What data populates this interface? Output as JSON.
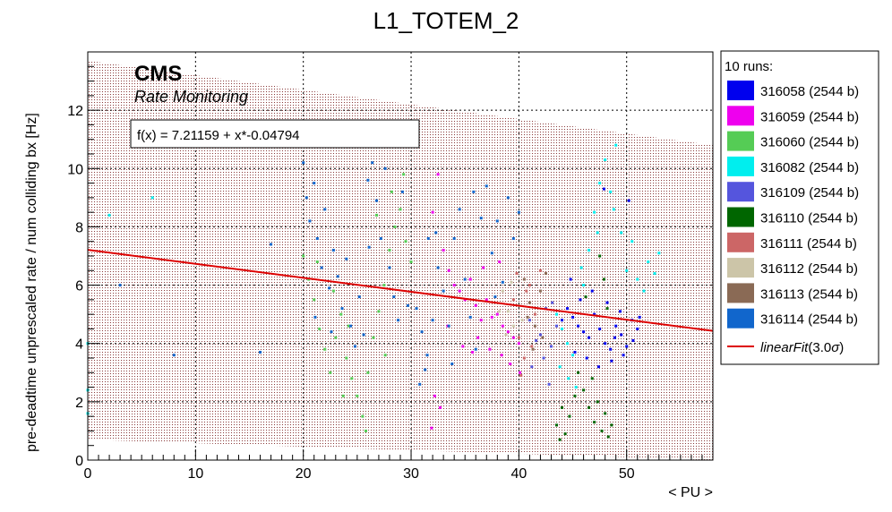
{
  "chart_data": {
    "type": "scatter",
    "title": "L1_TOTEM_2",
    "xlabel": "< PU >",
    "ylabel": "pre-deadtime unprescaled rate / num colliding bx [Hz]",
    "xlim": [
      0,
      58
    ],
    "ylim": [
      0,
      14
    ],
    "x_ticks": [
      0,
      10,
      20,
      30,
      40,
      50
    ],
    "y_ticks": [
      0,
      2,
      4,
      6,
      8,
      10,
      12
    ],
    "grid": true,
    "legend_placement": "right",
    "legend_header": "10 runs:",
    "cms_label": "CMS",
    "cms_sublabel": "Rate Monitoring",
    "fit": {
      "label": "f(x) = 7.21159 + x*-0.04794",
      "intercept": 7.21159,
      "slope": -0.04794,
      "legend_name": "linearFit",
      "legend_suffix": "(3.0",
      "legend_sigma": "σ",
      "legend_close": ")",
      "color": "#dd0000"
    },
    "band": {
      "upper": [
        [
          0,
          13.7
        ],
        [
          58,
          10.8
        ]
      ],
      "lower": [
        [
          0,
          0.7
        ],
        [
          58,
          -1.9
        ]
      ],
      "color": "#7a3030"
    },
    "series": [
      {
        "name": "316058 (2544 b)",
        "color": "#0000ee",
        "points": [
          [
            44.5,
            5.2
          ],
          [
            45,
            4.9
          ],
          [
            45.5,
            4.6
          ],
          [
            46,
            4.4
          ],
          [
            46.5,
            4.2
          ],
          [
            47,
            5.0
          ],
          [
            47.5,
            4.5
          ],
          [
            48,
            4.0
          ],
          [
            48.5,
            3.8
          ],
          [
            49,
            4.6
          ],
          [
            49.5,
            4.3
          ],
          [
            50,
            3.9
          ],
          [
            50.5,
            4.8
          ],
          [
            51,
            4.5
          ],
          [
            44,
            4.8
          ],
          [
            45.2,
            3.7
          ],
          [
            46.3,
            3.5
          ],
          [
            47.4,
            3.2
          ],
          [
            48.6,
            3.4
          ],
          [
            49.7,
            3.6
          ],
          [
            50.6,
            4.1
          ],
          [
            51.2,
            4.9
          ],
          [
            44.8,
            6.2
          ],
          [
            46.8,
            5.8
          ],
          [
            48.2,
            5.4
          ],
          [
            49.4,
            5.1
          ],
          [
            47.9,
            9.3
          ],
          [
            50.2,
            8.9
          ],
          [
            45.7,
            5.5
          ],
          [
            48.9,
            4.2
          ]
        ]
      },
      {
        "name": "316059 (2544 b)",
        "color": "#ee00ee",
        "points": [
          [
            32,
            8.5
          ],
          [
            32.5,
            9.8
          ],
          [
            33,
            7.2
          ],
          [
            33.5,
            6.5
          ],
          [
            34,
            6.0
          ],
          [
            34.5,
            5.8
          ],
          [
            35,
            5.5
          ],
          [
            35.5,
            6.2
          ],
          [
            36,
            5.3
          ],
          [
            36.5,
            4.8
          ],
          [
            37,
            5.5
          ],
          [
            37.5,
            4.9
          ],
          [
            38,
            5.0
          ],
          [
            38.5,
            4.6
          ],
          [
            39,
            4.4
          ],
          [
            39.5,
            4.2
          ],
          [
            40,
            4.0
          ],
          [
            36.2,
            4.2
          ],
          [
            37.3,
            3.8
          ],
          [
            38.4,
            3.6
          ],
          [
            39.2,
            3.3
          ],
          [
            40.1,
            3.0
          ],
          [
            34.8,
            3.9
          ],
          [
            35.7,
            3.7
          ],
          [
            33.4,
            4.6
          ],
          [
            32.2,
            2.2
          ],
          [
            32.7,
            1.8
          ],
          [
            31.9,
            1.1
          ],
          [
            36.7,
            6.6
          ],
          [
            38.2,
            6.8
          ]
        ]
      },
      {
        "name": "316060 (2544 b)",
        "color": "#55cc55",
        "points": [
          [
            20,
            7.0
          ],
          [
            20.5,
            6.2
          ],
          [
            21,
            5.5
          ],
          [
            21.5,
            4.5
          ],
          [
            22,
            3.8
          ],
          [
            22.5,
            3.0
          ],
          [
            23,
            4.2
          ],
          [
            23.5,
            5.0
          ],
          [
            24,
            3.5
          ],
          [
            24.5,
            2.8
          ],
          [
            25,
            2.2
          ],
          [
            25.5,
            1.5
          ],
          [
            26,
            3.0
          ],
          [
            26.5,
            4.2
          ],
          [
            27,
            5.1
          ],
          [
            27.5,
            6.0
          ],
          [
            28,
            7.2
          ],
          [
            28.5,
            8.0
          ],
          [
            29,
            8.6
          ],
          [
            29.5,
            7.5
          ],
          [
            30,
            6.8
          ],
          [
            25.8,
            1.0
          ],
          [
            24.2,
            4.6
          ],
          [
            22.8,
            5.8
          ],
          [
            21.3,
            6.8
          ],
          [
            26.8,
            8.4
          ],
          [
            28.2,
            9.2
          ],
          [
            29.3,
            9.8
          ],
          [
            23.7,
            2.2
          ],
          [
            27.6,
            3.6
          ]
        ]
      },
      {
        "name": "316082 (2544 b)",
        "color": "#00eeee",
        "points": [
          [
            43.5,
            5.0
          ],
          [
            44,
            4.5
          ],
          [
            44.5,
            4.0
          ],
          [
            45,
            3.6
          ],
          [
            46,
            6.0
          ],
          [
            46.5,
            7.2
          ],
          [
            47,
            8.5
          ],
          [
            47.5,
            9.5
          ],
          [
            48,
            10.3
          ],
          [
            48.5,
            9.2
          ],
          [
            49,
            10.8
          ],
          [
            49.5,
            7.8
          ],
          [
            50,
            6.5
          ],
          [
            50.5,
            7.5
          ],
          [
            51,
            6.2
          ],
          [
            52,
            6.8
          ],
          [
            53,
            7.1
          ],
          [
            43.8,
            3.2
          ],
          [
            44.6,
            2.8
          ],
          [
            45.3,
            2.5
          ],
          [
            45.8,
            6.6
          ],
          [
            47.3,
            7.8
          ],
          [
            48.8,
            8.6
          ],
          [
            51.6,
            5.8
          ],
          [
            0,
            2.4
          ],
          [
            0,
            1.6
          ],
          [
            0,
            4.0
          ],
          [
            6,
            9.0
          ],
          [
            2,
            8.4
          ],
          [
            52.6,
            6.4
          ]
        ]
      },
      {
        "name": "316109 (2544 b)",
        "color": "#5555dd",
        "points": [
          [
            41,
            4.8
          ],
          [
            42,
            4.3
          ],
          [
            42.5,
            5.2
          ],
          [
            43,
            3.9
          ],
          [
            43.5,
            4.6
          ],
          [
            42.3,
            3.5
          ],
          [
            41.6,
            4.1
          ],
          [
            43.1,
            5.4
          ],
          [
            42.8,
            2.6
          ],
          [
            41.2,
            3.2
          ]
        ]
      },
      {
        "name": "316110 (2544 b)",
        "color": "#006600",
        "points": [
          [
            43.5,
            1.2
          ],
          [
            44,
            1.8
          ],
          [
            44.3,
            0.9
          ],
          [
            44.7,
            1.5
          ],
          [
            45.5,
            3.0
          ],
          [
            46,
            2.4
          ],
          [
            46.5,
            1.8
          ],
          [
            47,
            1.3
          ],
          [
            47.3,
            2.0
          ],
          [
            47.7,
            1.0
          ],
          [
            48,
            1.6
          ],
          [
            48.3,
            0.8
          ],
          [
            46.8,
            2.8
          ],
          [
            45.2,
            2.2
          ],
          [
            47.5,
            7.0
          ],
          [
            47.9,
            6.2
          ],
          [
            48.2,
            5.2
          ],
          [
            46.2,
            5.6
          ],
          [
            48.6,
            1.2
          ],
          [
            43.8,
            0.7
          ]
        ]
      },
      {
        "name": "316111 (2544 b)",
        "color": "#cc6666",
        "points": [
          [
            39.5,
            5.5
          ],
          [
            40,
            4.2
          ],
          [
            40.5,
            3.5
          ],
          [
            41,
            6.0
          ],
          [
            41.5,
            5.0
          ],
          [
            42,
            6.5
          ],
          [
            40.2,
            2.9
          ],
          [
            39.8,
            6.4
          ],
          [
            41.2,
            3.9
          ],
          [
            40.7,
            5.8
          ]
        ]
      },
      {
        "name": "316112 (2544 b)",
        "color": "#ccc5a8",
        "points": [
          [
            38.5,
            5.8
          ],
          [
            39,
            5.1
          ],
          [
            39.5,
            4.6
          ],
          [
            40,
            5.3
          ],
          [
            38.8,
            4.3
          ],
          [
            39.3,
            6.1
          ],
          [
            40.3,
            4.8
          ],
          [
            38.2,
            5.1
          ]
        ]
      },
      {
        "name": "316113 (2544 b)",
        "color": "#8a6a55",
        "points": [
          [
            40.5,
            6.2
          ],
          [
            41,
            5.4
          ],
          [
            41.5,
            4.6
          ],
          [
            42,
            5.8
          ],
          [
            42.5,
            6.4
          ],
          [
            41.3,
            3.8
          ],
          [
            40.8,
            4.9
          ],
          [
            42.2,
            4.2
          ]
        ]
      },
      {
        "name": "316114 (2544 b)",
        "color": "#1166cc",
        "points": [
          [
            20,
            10.2
          ],
          [
            20.3,
            9.0
          ],
          [
            20.6,
            8.2
          ],
          [
            21,
            9.5
          ],
          [
            21.3,
            7.6
          ],
          [
            21.7,
            6.6
          ],
          [
            22,
            8.6
          ],
          [
            22.4,
            5.9
          ],
          [
            22.8,
            7.2
          ],
          [
            23.2,
            6.3
          ],
          [
            23.6,
            5.2
          ],
          [
            24,
            6.9
          ],
          [
            24.4,
            4.6
          ],
          [
            24.8,
            3.9
          ],
          [
            25.2,
            5.6
          ],
          [
            25.6,
            4.3
          ],
          [
            26,
            9.6
          ],
          [
            26.4,
            10.2
          ],
          [
            26.8,
            8.9
          ],
          [
            27.2,
            7.6
          ],
          [
            27.6,
            10.0
          ],
          [
            28,
            6.6
          ],
          [
            28.4,
            5.6
          ],
          [
            28.8,
            4.8
          ],
          [
            29.2,
            9.2
          ],
          [
            30.5,
            5.2
          ],
          [
            31,
            4.4
          ],
          [
            31.5,
            3.6
          ],
          [
            32,
            4.8
          ],
          [
            32.5,
            6.6
          ],
          [
            33,
            5.8
          ],
          [
            33.5,
            4.6
          ],
          [
            34,
            7.6
          ],
          [
            34.5,
            8.6
          ],
          [
            35,
            6.2
          ],
          [
            35.5,
            4.9
          ],
          [
            36,
            3.8
          ],
          [
            36.5,
            8.3
          ],
          [
            37,
            9.4
          ],
          [
            37.5,
            7.1
          ],
          [
            38,
            8.2
          ],
          [
            38.5,
            6.1
          ],
          [
            39,
            9.0
          ],
          [
            39.5,
            7.6
          ],
          [
            40,
            8.5
          ],
          [
            30.8,
            2.6
          ],
          [
            31.3,
            3.1
          ],
          [
            32.3,
            7.8
          ],
          [
            21.1,
            4.9
          ],
          [
            22.6,
            4.4
          ],
          [
            3,
            6.0
          ],
          [
            8,
            3.6
          ],
          [
            16,
            3.7
          ],
          [
            17,
            7.4
          ],
          [
            29.7,
            5.3
          ],
          [
            31.6,
            7.6
          ],
          [
            33.8,
            3.3
          ],
          [
            35.8,
            9.2
          ],
          [
            37.8,
            5.6
          ],
          [
            26.1,
            7.3
          ]
        ]
      }
    ]
  }
}
